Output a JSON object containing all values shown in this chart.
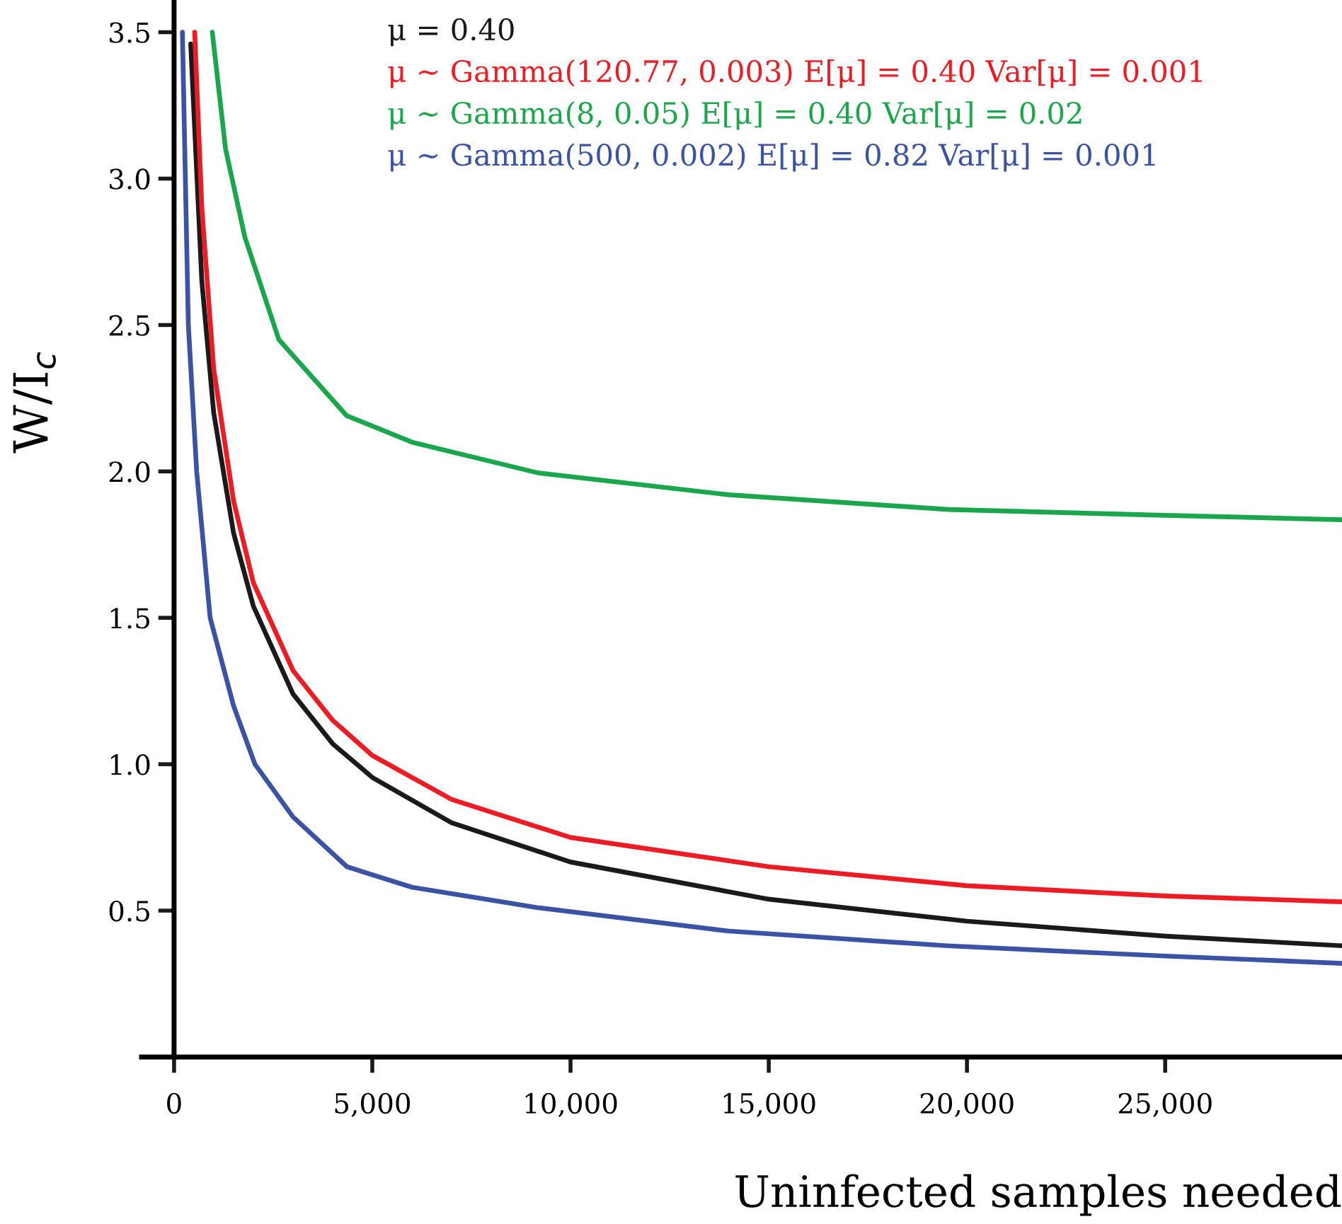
{
  "chart_data": {
    "type": "line",
    "xlabel": "Uninfected samples needed",
    "ylabel": "W/I$_{c}$",
    "xlim": [
      -820,
      29460
    ],
    "ylim": [
      0,
      3.61
    ],
    "xticks": [
      0,
      {
        "value": 5000,
        "label": "5,000"
      },
      {
        "value": 10000,
        "label": "10,000"
      },
      {
        "value": 15000,
        "label": "15,000"
      },
      {
        "value": 20000,
        "label": "20,000"
      },
      {
        "value": 25000,
        "label": "25,000"
      }
    ],
    "yticks": [
      0.5,
      {
        "value": 1,
        "label": "1.0"
      },
      1.5,
      {
        "value": 2,
        "label": "2.0"
      },
      2.5,
      {
        "value": 3,
        "label": "3.0"
      },
      3.5
    ],
    "grid": false,
    "legend": "top",
    "marker": "none",
    "line_style": "solid",
    "series": [
      {
        "name": "μ = 0.40",
        "color": "#1a1a1a",
        "x": [
          420,
          700,
          1000,
          1500,
          2000,
          3000,
          4000,
          5000,
          7000,
          10000,
          15000,
          20000,
          25000,
          29460
        ],
        "values": [
          3.46,
          2.65,
          2.2,
          1.79,
          1.54,
          1.24,
          1.07,
          0.955,
          0.8,
          0.666,
          0.539,
          0.464,
          0.413,
          0.38
        ]
      },
      {
        "name": "μ ∼ Gamma(120.77, 0.003) E[μ] = 0.40 Var[μ] = 0.001",
        "color": "#ed1c24",
        "x": [
          520,
          700,
          1000,
          1500,
          2000,
          3000,
          4000,
          5000,
          7000,
          10000,
          15000,
          20000,
          25000,
          29460
        ],
        "values": [
          3.5,
          2.9,
          2.35,
          1.9,
          1.62,
          1.32,
          1.15,
          1.03,
          0.88,
          0.75,
          0.65,
          0.585,
          0.55,
          0.53
        ]
      },
      {
        "name": "μ ∼ Gamma(8, 0.05) E[μ] = 0.40 Var[μ] = 0.02",
        "color": "#1aa64a",
        "x": [
          964,
          1300,
          1786,
          2643,
          4357,
          6000,
          9178,
          14000,
          19535,
          25000,
          29460
        ],
        "values": [
          3.5,
          3.1,
          2.8,
          2.45,
          2.19,
          2.1,
          1.995,
          1.92,
          1.87,
          1.85,
          1.835
        ]
      },
      {
        "name": "μ ∼ Gamma(500, 0.002) E[μ] = 0.82 Var[μ] = 0.001",
        "color": "#3a53a4",
        "x": [
          210,
          360,
          570,
          910,
          1500,
          2040,
          3000,
          4360,
          6000,
          9180,
          14000,
          19500,
          25000,
          29460
        ],
        "values": [
          3.5,
          2.5,
          2.0,
          1.5,
          1.2,
          1.0,
          0.82,
          0.65,
          0.58,
          0.51,
          0.43,
          0.38,
          0.345,
          0.32
        ]
      }
    ]
  }
}
